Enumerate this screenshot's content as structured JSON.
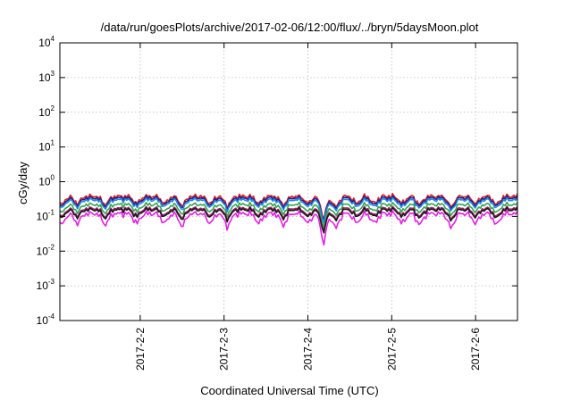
{
  "chart_data": {
    "type": "line",
    "title": "/data/run/goesPlots/archive/2017-02-06/12:00/flux/../bryn/5daysMoon.plot",
    "xlabel": "Coordinated Universal Time (UTC)",
    "ylabel": "cGy/day",
    "yscale": "log",
    "ylim": [
      0.0001,
      10000
    ],
    "yticks": [
      {
        "base": "10",
        "exp": "-4",
        "value": 0.0001
      },
      {
        "base": "10",
        "exp": "-3",
        "value": 0.001
      },
      {
        "base": "10",
        "exp": "-2",
        "value": 0.01
      },
      {
        "base": "10",
        "exp": "-1",
        "value": 0.1
      },
      {
        "base": "10",
        "exp": "0",
        "value": 1
      },
      {
        "base": "10",
        "exp": "1",
        "value": 10
      },
      {
        "base": "10",
        "exp": "2",
        "value": 100
      },
      {
        "base": "10",
        "exp": "3",
        "value": 1000
      },
      {
        "base": "10",
        "exp": "4",
        "value": 10000
      }
    ],
    "xlim": [
      "2017-02-01T01:00",
      "2017-02-06T12:00"
    ],
    "xticks": [
      {
        "label": "2017-2-2",
        "date": "2017-02-02T00:00"
      },
      {
        "label": "2017-2-3",
        "date": "2017-02-03T00:00"
      },
      {
        "label": "2017-2-4",
        "date": "2017-02-04T00:00"
      },
      {
        "label": "2017-2-5",
        "date": "2017-02-05T00:00"
      },
      {
        "label": "2017-2-6",
        "date": "2017-02-06T00:00"
      }
    ],
    "grid": true,
    "dips": [
      {
        "date": "2017-02-01T01:30",
        "depth": 0.55
      },
      {
        "date": "2017-02-01T06:00",
        "depth": 0.6
      },
      {
        "date": "2017-02-01T14:00",
        "depth": 0.55
      },
      {
        "date": "2017-02-01T23:00",
        "depth": 0.6
      },
      {
        "date": "2017-02-02T07:00",
        "depth": 0.6
      },
      {
        "date": "2017-02-02T12:00",
        "depth": 0.5
      },
      {
        "date": "2017-02-02T20:00",
        "depth": 0.6
      },
      {
        "date": "2017-02-03T01:00",
        "depth": 0.5
      },
      {
        "date": "2017-02-03T10:00",
        "depth": 0.6
      },
      {
        "date": "2017-02-03T17:00",
        "depth": 0.55
      },
      {
        "date": "2017-02-04T00:00",
        "depth": 0.6
      },
      {
        "date": "2017-02-04T04:30",
        "depth": 0.18
      },
      {
        "date": "2017-02-04T08:00",
        "depth": 0.45
      },
      {
        "date": "2017-02-04T14:00",
        "depth": 0.6
      },
      {
        "date": "2017-02-04T19:00",
        "depth": 0.6
      },
      {
        "date": "2017-02-05T03:00",
        "depth": 0.6
      },
      {
        "date": "2017-02-05T08:00",
        "depth": 0.55
      },
      {
        "date": "2017-02-05T17:00",
        "depth": 0.45
      },
      {
        "date": "2017-02-06T00:00",
        "depth": 0.6
      },
      {
        "date": "2017-02-06T06:00",
        "depth": 0.55
      }
    ],
    "series": [
      {
        "color": "#e0201c",
        "base": 0.38
      },
      {
        "color": "#1f1a9c",
        "base": 0.34
      },
      {
        "color": "#1e8bdc",
        "base": 0.3
      },
      {
        "color": "#2ea84e",
        "base": 0.22
      },
      {
        "color": "#a0206a",
        "base": 0.17
      },
      {
        "color": "#1a1a1a",
        "base": 0.155
      },
      {
        "color": "#e81ce8",
        "base": 0.12
      }
    ]
  }
}
